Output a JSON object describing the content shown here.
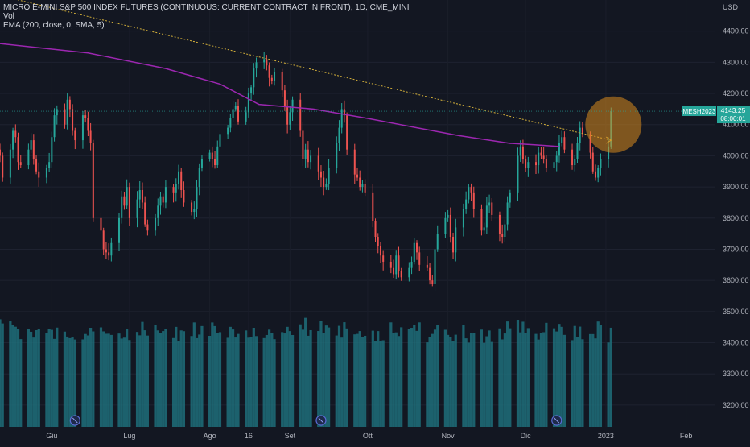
{
  "header": {
    "title": "MICRO E-MINI S&P 500 INDEX FUTURES (CONTINUOUS: CURRENT CONTRACT IN FRONT), 1D, CME_MINI",
    "volume_label": "Vol",
    "ema_label": "EMA (200, close, 0, SMA, 5)"
  },
  "price_axis": {
    "currency": "USD",
    "ticks": [
      "4400.00",
      "4300.00",
      "4200.00",
      "4100.00",
      "4000.00",
      "3900.00",
      "3800.00",
      "3700.00",
      "3600.00",
      "3500.00",
      "3400.00",
      "3300.00",
      "3200.00"
    ]
  },
  "time_axis": {
    "labels": [
      "Giu",
      "Lug",
      "Ago",
      "16",
      "Set",
      "Ott",
      "Nov",
      "Dic",
      "2023",
      "Feb"
    ]
  },
  "symbol_badge": {
    "symbol": "MESH2023",
    "price": "4143.25",
    "countdown": "08:00:01"
  },
  "colors": {
    "background": "#131722",
    "up": "#26a69a",
    "down": "#ef5350",
    "ema": "#9c27b0",
    "trendline": "#d4b03a",
    "highlight": "#d98a1e",
    "volume": "#1f6f7a",
    "badge": "#26a69a"
  },
  "chart_data": {
    "type": "candlestick",
    "title": "MICRO E-MINI S&P 500 INDEX FUTURES (CONTINUOUS: CURRENT CONTRACT IN FRONT), 1D, CME_MINI",
    "ylim": [
      3130,
      4500
    ],
    "x_start": "2022-05-12",
    "x_end": "2023-02-12",
    "closes": [
      4000,
      3930,
      4020,
      4080,
      4060,
      3980,
      3970,
      4020,
      4050,
      3990,
      3950,
      3930,
      3960,
      3980,
      4060,
      4130,
      4150,
      4100,
      4180,
      4150,
      4080,
      4050,
      4130,
      4120,
      4080,
      4040,
      3800,
      3760,
      3700,
      3690,
      3680,
      3720,
      3800,
      3870,
      3840,
      3900,
      3800,
      3860,
      3890,
      3850,
      3780,
      3760,
      3800,
      3840,
      3870,
      3850,
      3900,
      3880,
      3910,
      3950,
      3890,
      3850,
      3820,
      3830,
      3900,
      3960,
      3990,
      4010,
      3990,
      3970,
      4030,
      4070,
      4090,
      4120,
      4150,
      4160,
      4110,
      4140,
      4200,
      4220,
      4280,
      4300,
      4310,
      4290,
      4250,
      4240,
      4270,
      4210,
      4160,
      4100,
      4140,
      4180,
      4080,
      3990,
      4020,
      3980,
      4000,
      3950,
      3930,
      3900,
      3910,
      3960,
      4040,
      4090,
      4150,
      4130,
      4020,
      3940,
      3930,
      3900,
      3910,
      3880,
      3790,
      3740,
      3710,
      3680,
      3660,
      3640,
      3620,
      3680,
      3630,
      3610,
      3640,
      3660,
      3720,
      3690,
      3650,
      3640,
      3600,
      3590,
      3700,
      3750,
      3800,
      3810,
      3740,
      3690,
      3770,
      3830,
      3860,
      3900,
      3880,
      3830,
      3760,
      3770,
      3840,
      3850,
      3810,
      3750,
      3740,
      3780,
      3850,
      3880,
      4000,
      4030,
      3990,
      3960,
      3980,
      3970,
      4010,
      4000,
      3990,
      3960,
      3980,
      4000,
      4040,
      4060,
      4020,
      3970,
      3990,
      4040,
      4090,
      4070,
      4010,
      3950,
      3930,
      3960,
      3990,
      4030,
      4143.25
    ],
    "ema_200": {
      "x": [
        "2022-05-12",
        "2022-06-15",
        "2022-07-15",
        "2022-08-05",
        "2022-08-20",
        "2022-09-10",
        "2022-10-01",
        "2022-10-20",
        "2022-11-05",
        "2022-11-25",
        "2022-12-05",
        "2022-12-14"
      ],
      "y": [
        4360,
        4330,
        4280,
        4230,
        4165,
        4150,
        4120,
        4090,
        4065,
        4040,
        4035,
        4030
      ]
    },
    "trendline": {
      "x": [
        "2022-05-14",
        "2023-01-03"
      ],
      "y": [
        4510,
        4050
      ]
    },
    "volume_pattern": [
      0.85,
      0.7,
      0.8,
      0.75,
      0.78,
      0.6,
      0.7,
      0.82,
      0.65,
      0.72,
      0.68,
      0.8,
      0.74,
      0.6,
      0.7,
      0.66,
      0.72,
      0.62,
      0.76,
      0.64,
      0.7,
      0.58,
      0.68,
      0.73,
      0.61,
      0.77,
      0.69,
      0.63
    ],
    "markers_dates": [
      "2022-06-10",
      "2022-09-13",
      "2022-12-13"
    ]
  }
}
